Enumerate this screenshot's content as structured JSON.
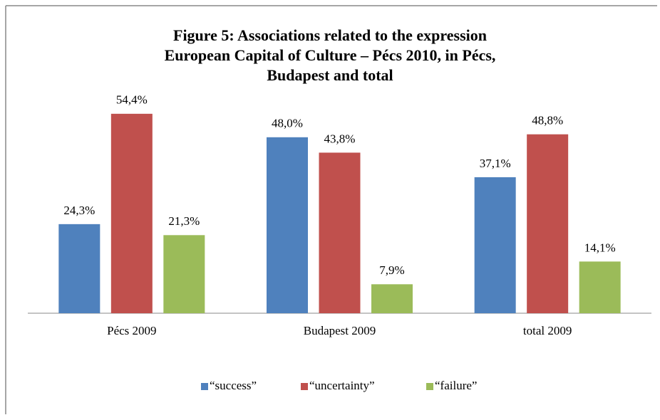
{
  "chart_data": {
    "type": "bar",
    "title": [
      "Figure 5: Associations related to the expression",
      "European Capital of Culture – Pécs 2010, in Pécs,",
      "Budapest and total"
    ],
    "categories": [
      "Pécs 2009",
      "Budapest 2009",
      "total 2009"
    ],
    "series": [
      {
        "name": "“success”",
        "color": "#4f81bd",
        "values": [
          24.3,
          48.0,
          37.1
        ],
        "value_labels": [
          "24,3%",
          "48,0%",
          "37,1%"
        ]
      },
      {
        "name": "“uncertainty”",
        "color": "#c0504d",
        "values": [
          54.4,
          43.8,
          48.8
        ],
        "value_labels": [
          "54,4%",
          "43,8%",
          "48,8%"
        ]
      },
      {
        "name": "“failure”",
        "color": "#9bbb59",
        "values": [
          21.3,
          7.9,
          14.1
        ],
        "value_labels": [
          "21,3%",
          "7,9%",
          "14,1%"
        ]
      }
    ],
    "ylim": [
      0,
      60
    ],
    "legend": "bottom"
  }
}
